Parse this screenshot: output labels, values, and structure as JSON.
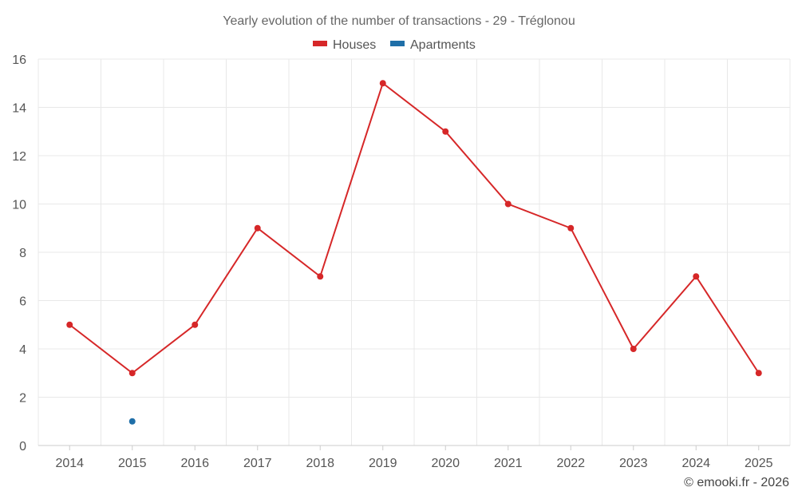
{
  "chart_data": {
    "type": "line",
    "title": "Yearly evolution of the number of transactions - 29 - Tréglonou",
    "categories": [
      "2014",
      "2015",
      "2016",
      "2017",
      "2018",
      "2019",
      "2020",
      "2021",
      "2022",
      "2023",
      "2024",
      "2025"
    ],
    "series": [
      {
        "name": "Houses",
        "color": "#d62728",
        "values": [
          5,
          3,
          5,
          9,
          7,
          15,
          13,
          10,
          9,
          4,
          7,
          3
        ]
      },
      {
        "name": "Apartments",
        "color": "#1f6fa8",
        "values": [
          null,
          1,
          null,
          null,
          null,
          null,
          null,
          null,
          null,
          null,
          null,
          null
        ]
      }
    ],
    "ylim": [
      0,
      16
    ],
    "yticks": [
      0,
      2,
      4,
      6,
      8,
      10,
      12,
      14,
      16
    ],
    "xlabel": "",
    "ylabel": "",
    "grid": true,
    "legend_position": "top-center"
  },
  "footer": {
    "credit": "© emooki.fr - 2026"
  }
}
